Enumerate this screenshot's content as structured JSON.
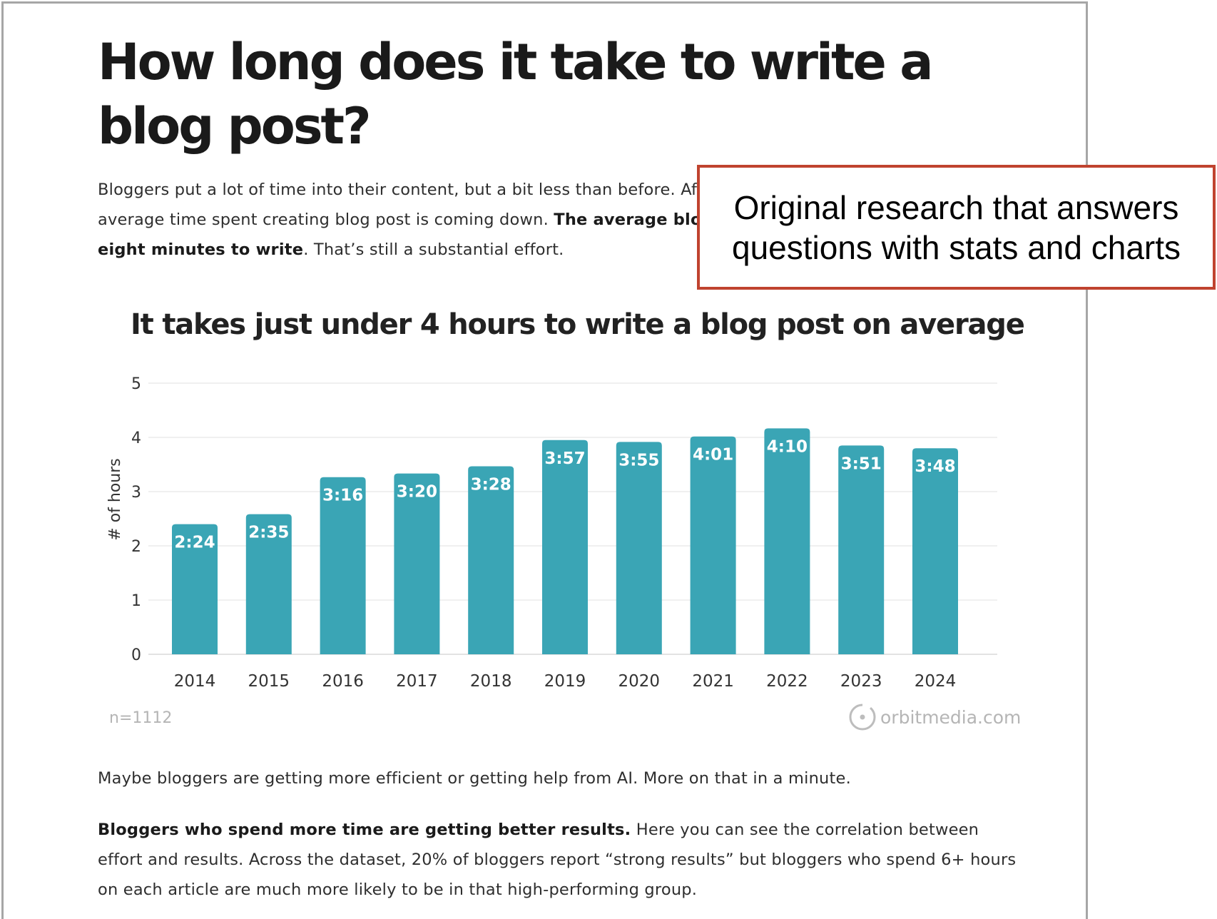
{
  "article": {
    "title": "How long does it take to write a blog post?",
    "intro_line1": "Bloggers put a lot of time into their content, but a bit less than before. Af",
    "intro_line2_plain": "average time spent creating blog post is coming down. ",
    "intro_line2_bold": "The average blo",
    "intro_line3_bold": "eight minutes to write",
    "intro_line3_plain": ". That’s still a substantial effort.",
    "para2": "Maybe bloggers are getting more efficient or getting help from AI. More on that in a minute.",
    "para3_bold": "Bloggers who spend more time are getting better results.",
    "para3_plain": " Here you can see the correlation between effort and results. Across the dataset, 20% of bloggers report “strong results” but bloggers who spend 6+ hours on each article are much more likely to be in that high-performing group."
  },
  "callout": {
    "text": "Original research that answers questions with stats and charts",
    "border_color": "#c0432f"
  },
  "chart_data": {
    "type": "bar",
    "title": "It takes just under 4 hours to write a blog post on average",
    "ylabel": "# of hours",
    "xlabel": "",
    "categories": [
      "2014",
      "2015",
      "2016",
      "2017",
      "2018",
      "2019",
      "2020",
      "2021",
      "2022",
      "2023",
      "2024"
    ],
    "values": [
      2.4,
      2.5833,
      3.2667,
      3.3333,
      3.4667,
      3.95,
      3.9167,
      4.0167,
      4.1667,
      3.85,
      3.8
    ],
    "data_labels": [
      "2:24",
      "2:35",
      "3:16",
      "3:20",
      "3:28",
      "3:57",
      "3:55",
      "4:01",
      "4:10",
      "3:51",
      "3:48"
    ],
    "ylim": [
      0,
      5
    ],
    "yticks": [
      "0",
      "1",
      "2",
      "3",
      "4",
      "5"
    ],
    "grid": true,
    "bar_color": "#3aa5b5",
    "footnote": "n=1112",
    "source": "orbitmedia.com"
  }
}
